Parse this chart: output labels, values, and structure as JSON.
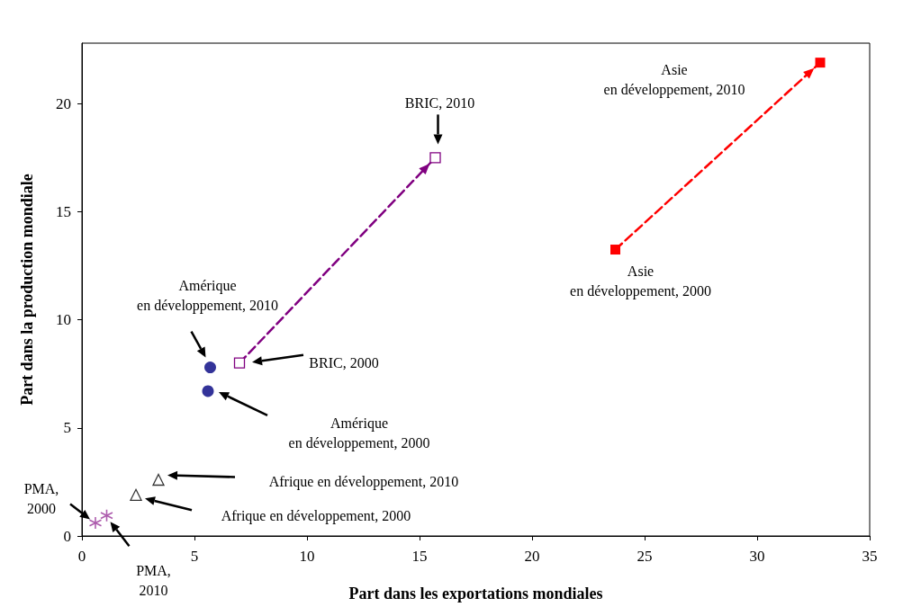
{
  "chart_data": {
    "type": "scatter",
    "xlabel": "Part dans les exportations mondiales",
    "ylabel": "Part dans la production mondiale",
    "xlim": [
      0,
      35
    ],
    "xticks": [
      0,
      5,
      10,
      15,
      20,
      25,
      30,
      35
    ],
    "ylim": [
      0,
      22.8
    ],
    "yticks": [
      0,
      5,
      10,
      15,
      20
    ],
    "grid": false,
    "series": [
      {
        "marker": "cross",
        "color": "#993399",
        "x": [
          0.6,
          1.1
        ],
        "values": [
          0.6,
          0.95
        ]
      },
      {
        "marker": "triangle",
        "color": "#000000",
        "x": [
          2.4,
          3.4
        ],
        "values": [
          1.9,
          2.6
        ]
      },
      {
        "marker": "circle",
        "color": "#000080",
        "x": [
          5.6,
          5.7
        ],
        "values": [
          6.7,
          7.8
        ]
      },
      {
        "type": "line",
        "line_style": "dashed",
        "marker": "square",
        "color": "#800080",
        "x": [
          7.0,
          15.7
        ],
        "values": [
          8.0,
          17.5
        ]
      },
      {
        "type": "line",
        "line_style": "dashed",
        "marker": "square",
        "color": "#ff0000",
        "x": [
          23.7,
          32.8
        ],
        "values": [
          13.25,
          21.9
        ]
      }
    ],
    "annotations": [
      "PMA,\n2000",
      "PMA,\n2010",
      "Afrique en développement, 2000",
      "Afrique en développement, 2010",
      "Amérique\nen développement, 2010",
      "Amérique\nen développement, 2000",
      "BRIC, 2000",
      "BRIC, 2010",
      "Asie\nen développement, 2010",
      "Asie\nen développement, 2000"
    ]
  }
}
